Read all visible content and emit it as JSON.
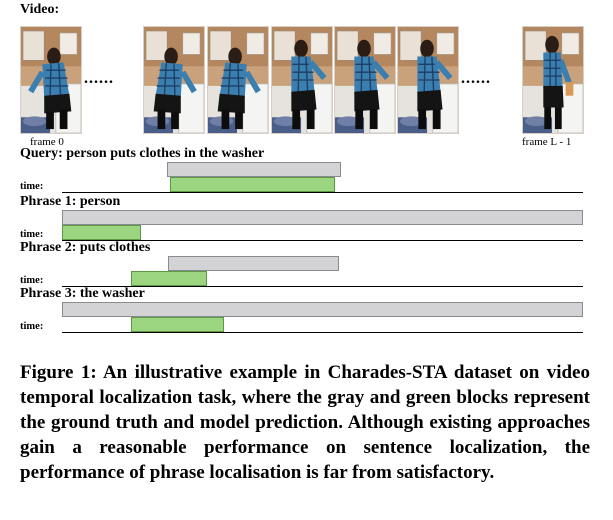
{
  "video": {
    "label": "Video:",
    "first_frame_label": "frame 0",
    "last_frame_label": "frame L - 1",
    "ellipsis": "......",
    "frames": [
      {
        "pose": "bend-left"
      },
      {
        "pose": "bend-right"
      },
      {
        "pose": "bend-right"
      },
      {
        "pose": "reach"
      },
      {
        "pose": "reach"
      },
      {
        "pose": "reach"
      },
      {
        "pose": "stand"
      }
    ]
  },
  "timeline_label": "time:",
  "rows": [
    {
      "label": "Query: person puts clothes in the washer",
      "ground_truth": {
        "start": 0.201,
        "end": 0.535
      },
      "prediction": {
        "start": 0.207,
        "end": 0.524
      }
    },
    {
      "label": "Phrase 1: person",
      "ground_truth": {
        "start": 0.0,
        "end": 1.0
      },
      "prediction": {
        "start": 0.0,
        "end": 0.152
      }
    },
    {
      "label": "Phrase 2: puts clothes",
      "ground_truth": {
        "start": 0.203,
        "end": 0.532
      },
      "prediction": {
        "start": 0.132,
        "end": 0.279
      }
    },
    {
      "label": "Phrase 3: the washer",
      "ground_truth": {
        "start": 0.0,
        "end": 1.0
      },
      "prediction": {
        "start": 0.132,
        "end": 0.311
      }
    }
  ],
  "caption": "Figure 1: An illustrative example in Charades-STA dataset on video temporal localization task, where the gray and green blocks represent the ground truth and model prediction. Although existing approaches gain a reasonable performance on sentence localization, the performance of phrase localisation is far from satisfactory.",
  "colors": {
    "ground_truth": "#d3d3d5",
    "prediction": "#9cd57f"
  }
}
